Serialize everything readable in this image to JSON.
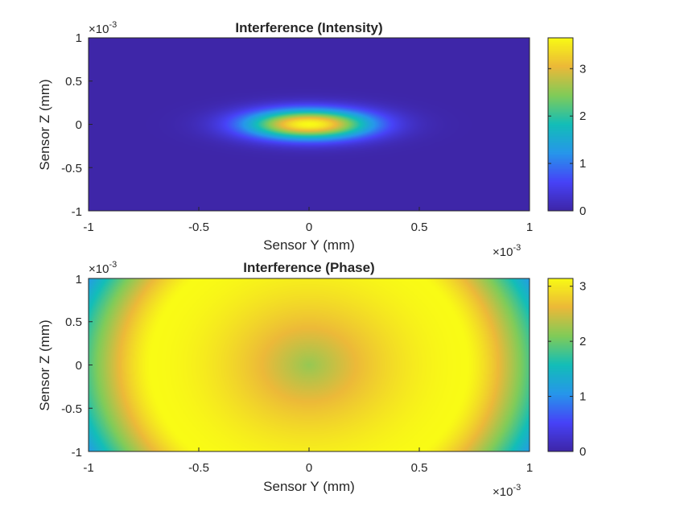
{
  "colors": {
    "background": "#ffffff",
    "axis": "#262626",
    "colormap": [
      "#3e26a8",
      "#4743f8",
      "#2797eb",
      "#13beb8",
      "#81cc59",
      "#ecb939",
      "#f9fb15"
    ]
  },
  "chart_data": [
    {
      "type": "heatmap",
      "title": "Interference (Intensity)",
      "xlabel": "Sensor Y (mm)",
      "ylabel": "Sensor Z (mm)",
      "xlim": [
        -1,
        1
      ],
      "ylim": [
        -1,
        1
      ],
      "xticks": [
        "-1",
        "-0.5",
        "0",
        "0.5",
        "1"
      ],
      "yticks": [
        "1",
        "0.5",
        "0",
        "-0.5",
        "-1"
      ],
      "x_multiplier": {
        "base": "×10",
        "exponent": "-3"
      },
      "y_multiplier": {
        "base": "×10",
        "exponent": "-3"
      },
      "colorbar": {
        "range": [
          0,
          3.65
        ],
        "ticks": [
          "0",
          "1",
          "2",
          "3"
        ]
      },
      "field": {
        "peak": 3.65,
        "center": [
          0,
          0
        ],
        "sigma_y": 0.2,
        "sigma_z": 0.12
      },
      "grid": false
    },
    {
      "type": "heatmap",
      "title": "Interference (Phase)",
      "xlabel": "Sensor Y (mm)",
      "ylabel": "Sensor Z (mm)",
      "xlim": [
        -1,
        1
      ],
      "ylim": [
        -1,
        1
      ],
      "xticks": [
        "-1",
        "-0.5",
        "0",
        "0.5",
        "1"
      ],
      "yticks": [
        "1",
        "0.5",
        "0",
        "-0.5",
        "-1"
      ],
      "x_multiplier": {
        "base": "×10",
        "exponent": "-3"
      },
      "y_multiplier": {
        "base": "×10",
        "exponent": "-3"
      },
      "colorbar": {
        "range": [
          0,
          3.1416
        ],
        "ticks": [
          "0",
          "1",
          "2",
          "3"
        ]
      },
      "field": {
        "center_value": 2.2,
        "peak_value": 3.14,
        "ring_radius": 0.72,
        "edge_value": 1.1,
        "z_scale": 2.0
      },
      "grid": false
    }
  ]
}
